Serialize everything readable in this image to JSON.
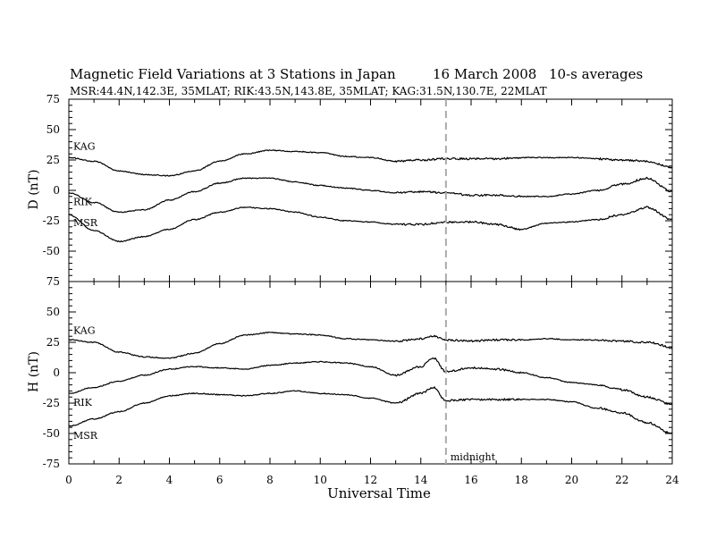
{
  "header": {
    "title_main": "Magnetic Field Variations at 3 Stations in Japan",
    "title_date": "16 March   2008",
    "title_avg": "10-s averages",
    "subtitle": "MSR:44.4N,142.3E, 35MLAT;  RIK:43.5N,143.8E, 35MLAT;  KAG:31.5N,130.7E, 22MLAT"
  },
  "annotation": {
    "midnight": "midnight",
    "midnight_x": 15
  },
  "chart_data": [
    {
      "type": "line",
      "panel": "D",
      "ylabel": "D (nT)",
      "xlabel": "",
      "xlim": [
        0,
        24
      ],
      "ylim": [
        -75,
        75
      ],
      "yticks": [
        75,
        50,
        25,
        0,
        -25,
        -50,
        -75
      ],
      "x": [
        0,
        1,
        2,
        3,
        4,
        5,
        6,
        7,
        8,
        9,
        10,
        11,
        12,
        13,
        14,
        15,
        16,
        17,
        18,
        19,
        20,
        21,
        22,
        23,
        24
      ],
      "series": [
        {
          "name": "KAG",
          "values": [
            27,
            24,
            16,
            13,
            12,
            16,
            24,
            30,
            33,
            32,
            31,
            28,
            27,
            24,
            25,
            26,
            26,
            26,
            27,
            27,
            27,
            26,
            25,
            24,
            19
          ]
        },
        {
          "name": "RIK",
          "values": [
            -2,
            -10,
            -18,
            -16,
            -8,
            -1,
            6,
            10,
            10,
            7,
            4,
            2,
            0,
            -2,
            -1,
            -2,
            -4,
            -4,
            -5,
            -5,
            -3,
            0,
            5,
            10,
            -1
          ]
        },
        {
          "name": "MSR",
          "values": [
            -20,
            -33,
            -42,
            -38,
            -32,
            -24,
            -18,
            -14,
            -15,
            -18,
            -22,
            -25,
            -26,
            -28,
            -28,
            -26,
            -26,
            -28,
            -32,
            -27,
            -26,
            -24,
            -20,
            -14,
            -24
          ]
        }
      ]
    },
    {
      "type": "line",
      "panel": "H",
      "ylabel": "H (nT)",
      "xlabel": "Universal Time",
      "xlim": [
        0,
        24
      ],
      "ylim": [
        -75,
        75
      ],
      "yticks": [
        75,
        50,
        25,
        0,
        -25,
        -50,
        -75
      ],
      "xticks": [
        0,
        2,
        4,
        6,
        8,
        10,
        12,
        14,
        16,
        18,
        20,
        22,
        24
      ],
      "x": [
        0,
        1,
        2,
        3,
        4,
        5,
        6,
        7,
        8,
        9,
        10,
        11,
        12,
        13,
        14,
        14.5,
        15,
        16,
        17,
        18,
        19,
        20,
        21,
        22,
        23,
        24
      ],
      "series": [
        {
          "name": "KAG",
          "values": [
            27,
            25,
            17,
            13,
            12,
            16,
            24,
            31,
            33,
            32,
            31,
            28,
            27,
            26,
            28,
            30,
            27,
            26,
            27,
            27,
            28,
            27,
            27,
            26,
            25,
            21
          ]
        },
        {
          "name": "RIK",
          "values": [
            -17,
            -12,
            -7,
            -2,
            3,
            5,
            4,
            3,
            6,
            8,
            9,
            8,
            5,
            -2,
            5,
            12,
            1,
            4,
            3,
            0,
            -4,
            -8,
            -10,
            -14,
            -20,
            -26
          ]
        },
        {
          "name": "MSR",
          "values": [
            -44,
            -38,
            -32,
            -25,
            -19,
            -17,
            -18,
            -19,
            -17,
            -15,
            -17,
            -18,
            -21,
            -25,
            -17,
            -12,
            -23,
            -22,
            -22,
            -22,
            -22,
            -24,
            -29,
            -33,
            -41,
            -50
          ]
        }
      ]
    }
  ]
}
